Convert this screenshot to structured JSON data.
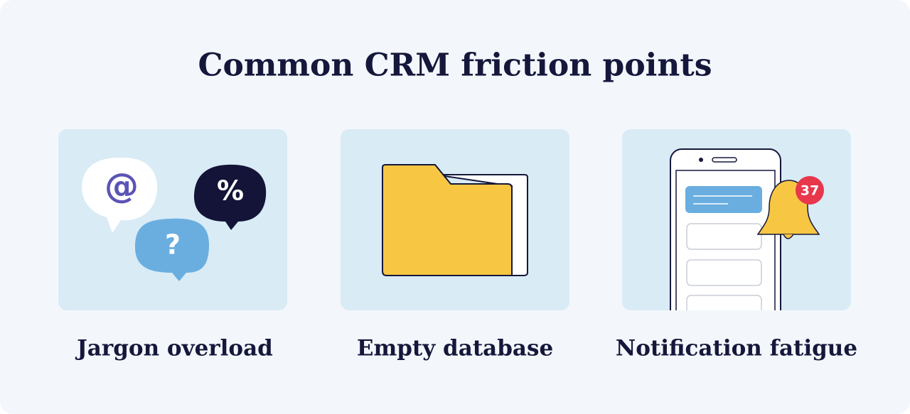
{
  "header": {
    "title": "Common CRM friction points"
  },
  "cards": [
    {
      "label": "Jargon overload",
      "symbols": [
        "@",
        "%",
        "?"
      ]
    },
    {
      "label": "Empty database"
    },
    {
      "label": "Notification fatigue",
      "badge": 37
    }
  ]
}
